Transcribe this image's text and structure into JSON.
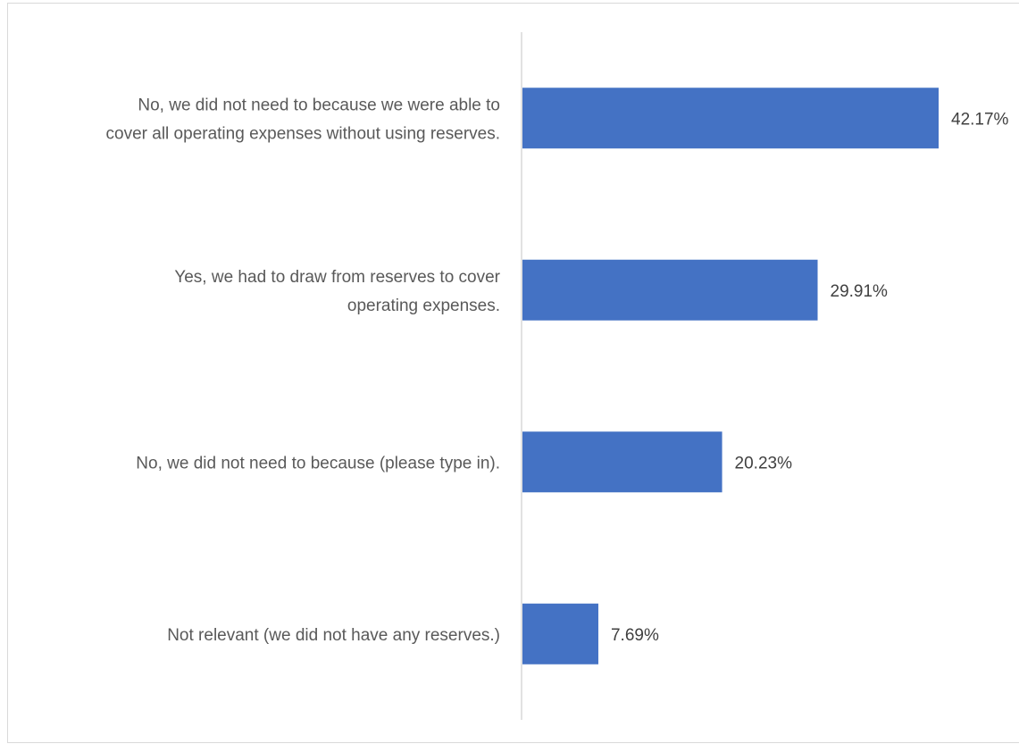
{
  "chart_data": {
    "type": "bar",
    "orientation": "horizontal",
    "title": "",
    "xlabel": "",
    "ylabel": "",
    "categories": [
      [
        "No, we did not need to because we were able to",
        "cover all operating expenses without using reserves."
      ],
      [
        "Yes, we had to draw from reserves to cover",
        "operating expenses."
      ],
      [
        "No, we did not need to because (please type in)."
      ],
      [
        "Not relevant (we did not have any reserves.)"
      ]
    ],
    "values": [
      42.17,
      29.91,
      20.23,
      7.69
    ],
    "value_labels": [
      "42.17%",
      "29.91%",
      "20.23%",
      "7.69%"
    ],
    "xlim": [
      0,
      50
    ],
    "grid": false,
    "legend": "none",
    "bar_color": "#4472C4",
    "axis_color": "#d9d9d9"
  }
}
